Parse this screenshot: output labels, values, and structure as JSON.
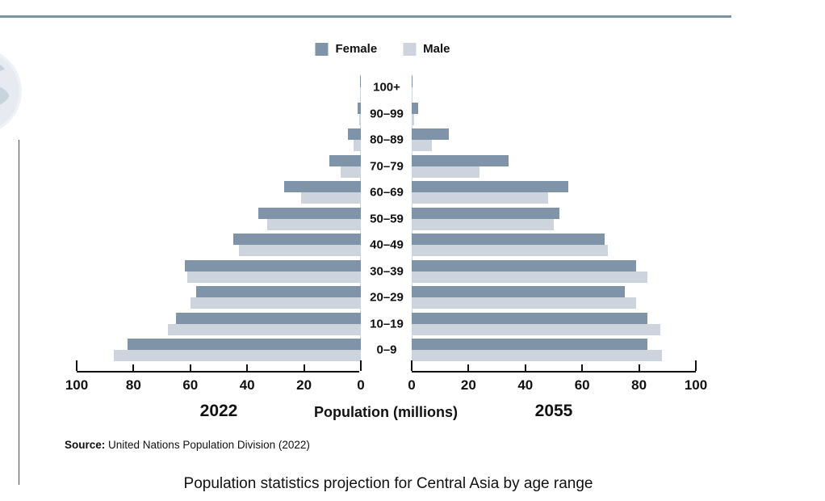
{
  "page": {
    "title": "Population statistics projection for Central Asia by age range",
    "source_prefix": "Source:",
    "source_text": " United Nations Population Division (2022)"
  },
  "legend": {
    "female_label": "Female",
    "male_label": "Male"
  },
  "axis": {
    "left_year_label": "2022",
    "right_year_label": "2055",
    "x_axis_title": "Population (millions)",
    "left_ticks": [
      100,
      80,
      60,
      40,
      20,
      0
    ],
    "right_ticks": [
      0,
      20,
      40,
      60,
      80,
      100
    ]
  },
  "colors": {
    "female": "#7f94a9",
    "male": "#cdd4dd",
    "accent_line": "#7d93a6"
  },
  "chart_data": {
    "type": "bar",
    "subtype": "population-pyramid",
    "unit": "millions",
    "title": "Population statistics projection for Central Asia by age range",
    "xlabel": "Population (millions)",
    "xlim": [
      0,
      100
    ],
    "left_panel": "2022",
    "right_panel": "2055",
    "categories_top_to_bottom": [
      "100+",
      "90–99",
      "80–89",
      "70–79",
      "60–69",
      "50–59",
      "40–49",
      "30–39",
      "20–29",
      "10–19",
      "0–9"
    ],
    "series": [
      {
        "name": "2022 Female",
        "panel": "left",
        "color": "#7f94a9",
        "values": [
          0.3,
          1.0,
          4.5,
          11,
          27,
          36,
          45,
          62,
          58,
          65,
          82
        ]
      },
      {
        "name": "2022 Male",
        "panel": "left",
        "color": "#cdd4dd",
        "values": [
          0.1,
          0.5,
          2.5,
          7,
          21,
          33,
          43,
          61,
          60,
          68,
          87
        ]
      },
      {
        "name": "2055 Female",
        "panel": "right",
        "color": "#7f94a9",
        "values": [
          0.3,
          2.4,
          13,
          34,
          55,
          52,
          68,
          79,
          75,
          83,
          83
        ]
      },
      {
        "name": "2055 Male",
        "panel": "right",
        "color": "#cdd4dd",
        "values": [
          0.1,
          0.9,
          7,
          24,
          48,
          50,
          69,
          83,
          79,
          87.5,
          88
        ]
      }
    ],
    "legend_position": "top-center",
    "grid": false,
    "source": "Source: United Nations Population Division (2022)"
  }
}
